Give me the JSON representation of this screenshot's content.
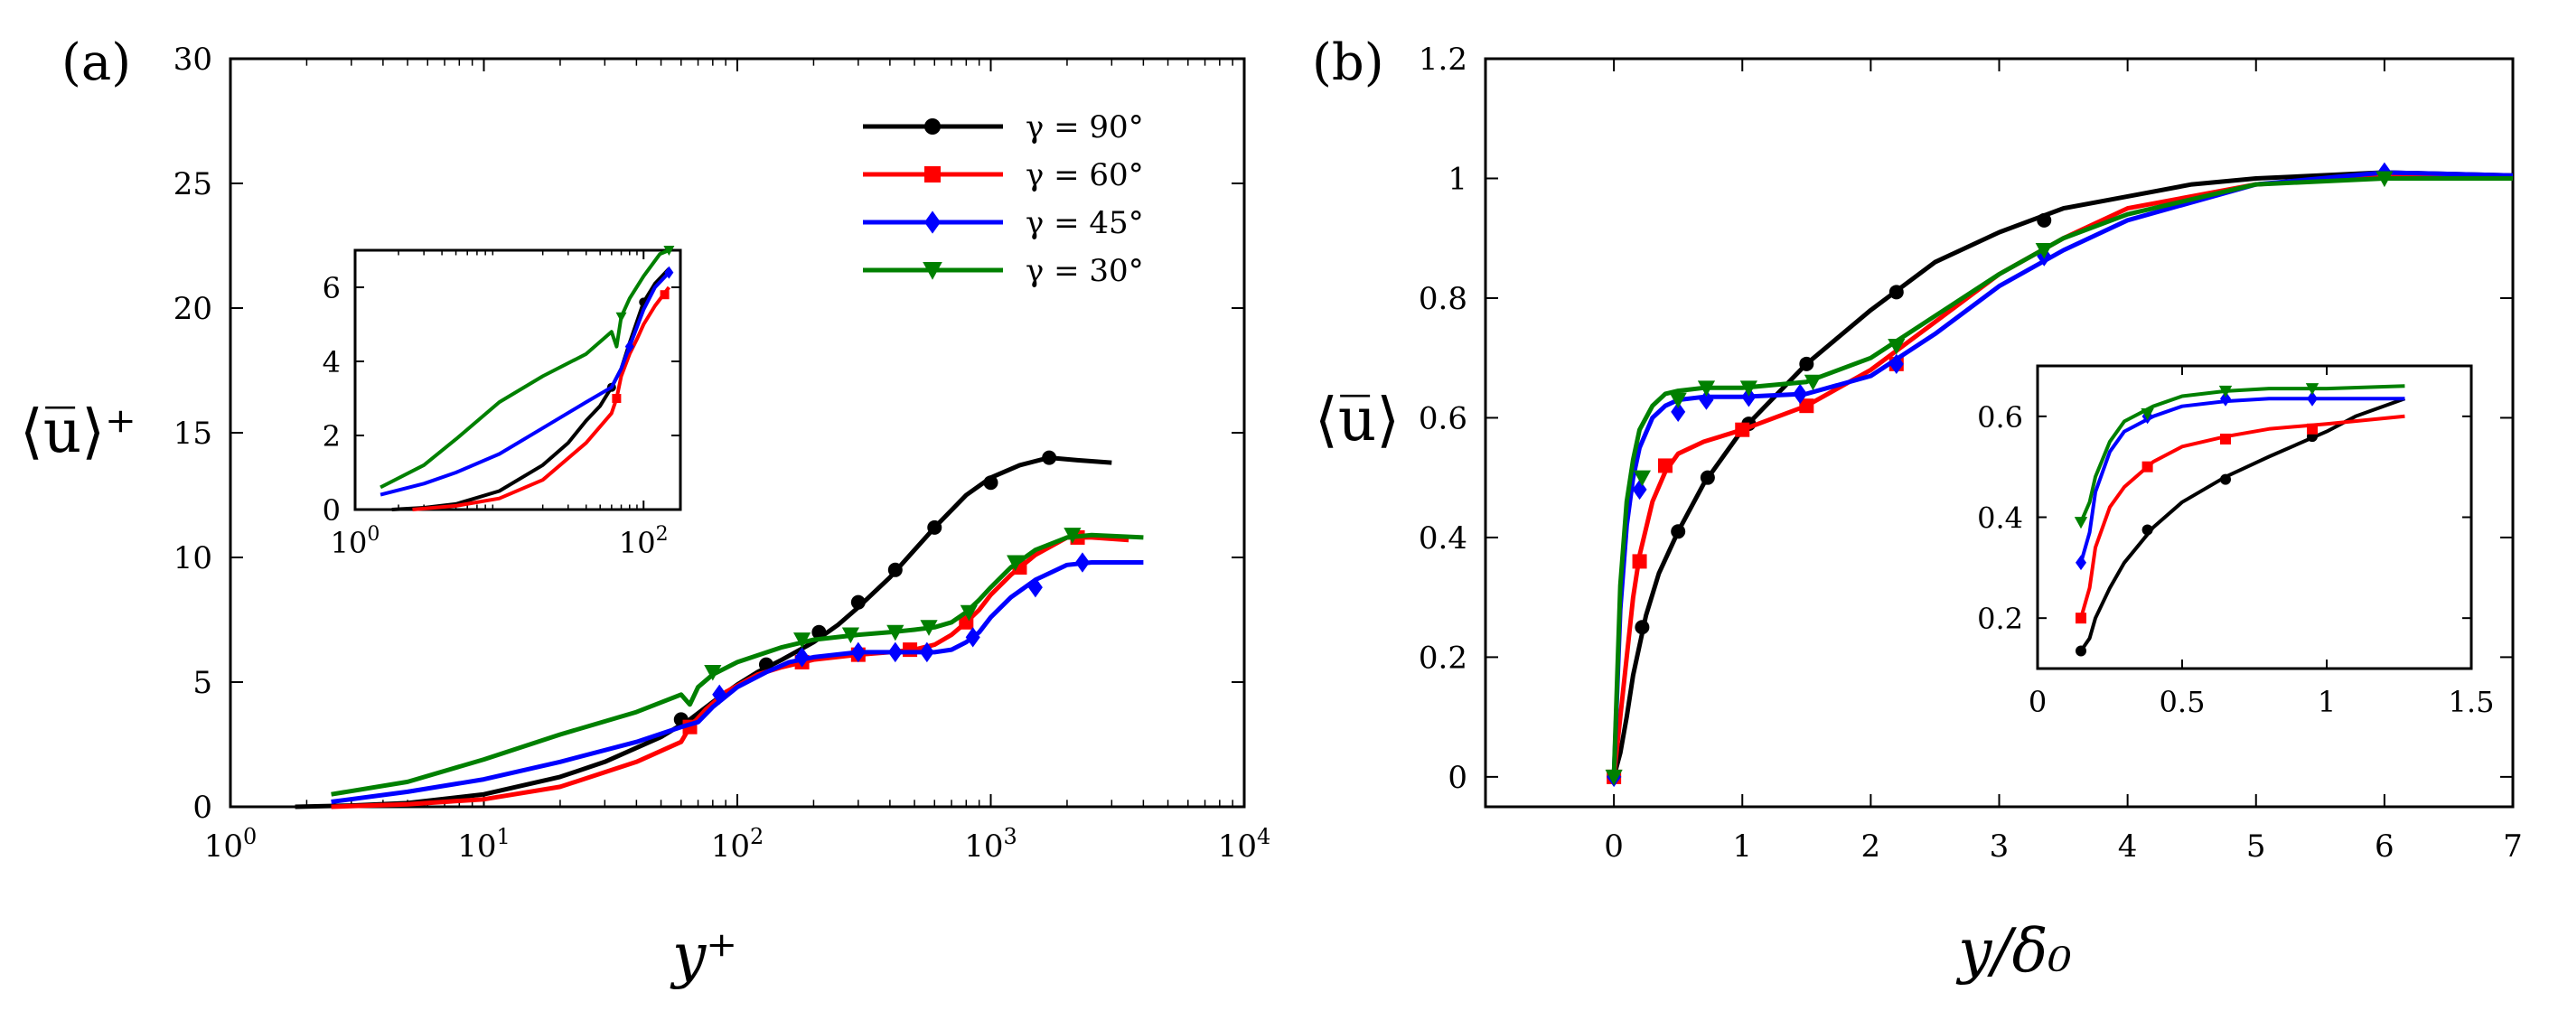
{
  "chart_data": [
    {
      "type": "line",
      "panel_label": "(a)",
      "xlabel": "y⁺",
      "ylabel": "⟨u̅⟩⁺",
      "xscale": "log",
      "xlim": [
        1,
        10000
      ],
      "ylim": [
        0,
        30
      ],
      "x_ticks": [
        {
          "v": 1,
          "base": "10",
          "exp": "0"
        },
        {
          "v": 10,
          "base": "10",
          "exp": "1"
        },
        {
          "v": 100,
          "base": "10",
          "exp": "2"
        },
        {
          "v": 1000,
          "base": "10",
          "exp": "3"
        },
        {
          "v": 10000,
          "base": "10",
          "exp": "4"
        }
      ],
      "y_ticks": [
        "0",
        "5",
        "10",
        "15",
        "20",
        "25",
        "30"
      ],
      "legend": {
        "placement": "top-right",
        "entries": [
          "γ = 90°",
          "γ = 60°",
          "γ = 45°",
          "γ = 30°"
        ]
      },
      "series": [
        {
          "name": "γ = 90°",
          "color": "#000000",
          "marker": "circle",
          "x": [
            1.8,
            3,
            5,
            10,
            20,
            30,
            50,
            65,
            80,
            100,
            120,
            150,
            200,
            250,
            300,
            400,
            500,
            600,
            700,
            800,
            1000,
            1300,
            1700,
            2200,
            3000
          ],
          "y": [
            0,
            0.05,
            0.15,
            0.5,
            1.2,
            1.8,
            2.8,
            3.5,
            4.2,
            4.9,
            5.4,
            5.9,
            6.6,
            7.3,
            8.0,
            9.2,
            10.3,
            11.2,
            11.9,
            12.5,
            13.2,
            13.7,
            14.0,
            13.9,
            13.8
          ],
          "markers_x": [
            60,
            130,
            210,
            300,
            420,
            600,
            1000,
            1700
          ],
          "markers_y": [
            3.5,
            5.7,
            7.0,
            8.2,
            9.5,
            11.2,
            13.0,
            14.0
          ]
        },
        {
          "name": "γ = 60°",
          "color": "#ff0000",
          "marker": "square",
          "x": [
            2.5,
            5,
            10,
            20,
            40,
            60,
            65,
            75,
            90,
            120,
            150,
            200,
            300,
            400,
            500,
            600,
            700,
            800,
            900,
            1000,
            1200,
            1500,
            2000,
            2500,
            3500
          ],
          "y": [
            0,
            0.1,
            0.3,
            0.8,
            1.8,
            2.6,
            3.2,
            3.9,
            4.6,
            5.3,
            5.6,
            5.9,
            6.1,
            6.2,
            6.3,
            6.5,
            6.9,
            7.4,
            7.9,
            8.5,
            9.3,
            10.1,
            10.8,
            10.8,
            10.7
          ],
          "markers_x": [
            65,
            180,
            300,
            480,
            800,
            1300,
            2200
          ],
          "markers_y": [
            3.2,
            5.8,
            6.1,
            6.3,
            7.4,
            9.6,
            10.8
          ]
        },
        {
          "name": "γ = 45°",
          "color": "#0000ff",
          "marker": "diamond",
          "x": [
            2.5,
            5,
            10,
            20,
            40,
            60,
            70,
            80,
            100,
            130,
            160,
            200,
            300,
            400,
            500,
            600,
            700,
            800,
            900,
            1000,
            1200,
            1500,
            2000,
            2500,
            4000
          ],
          "y": [
            0.2,
            0.6,
            1.1,
            1.8,
            2.6,
            3.2,
            3.4,
            4.0,
            4.8,
            5.4,
            5.8,
            6.0,
            6.2,
            6.2,
            6.2,
            6.2,
            6.3,
            6.6,
            7.0,
            7.6,
            8.4,
            9.1,
            9.7,
            9.8,
            9.8
          ],
          "markers_x": [
            85,
            180,
            300,
            420,
            560,
            850,
            1500,
            2300
          ],
          "markers_y": [
            4.5,
            6.0,
            6.2,
            6.2,
            6.2,
            6.8,
            8.8,
            9.8
          ]
        },
        {
          "name": "γ = 30°",
          "color": "#008000",
          "marker": "triangle-down",
          "x": [
            2.5,
            5,
            10,
            20,
            40,
            60,
            65,
            70,
            80,
            100,
            150,
            200,
            300,
            400,
            500,
            600,
            700,
            800,
            900,
            1000,
            1200,
            1500,
            2000,
            2500,
            4000
          ],
          "y": [
            0.5,
            1.0,
            1.9,
            2.9,
            3.8,
            4.5,
            4.1,
            4.8,
            5.3,
            5.8,
            6.4,
            6.7,
            6.9,
            7.0,
            7.1,
            7.2,
            7.4,
            7.8,
            8.3,
            8.8,
            9.6,
            10.3,
            10.8,
            10.9,
            10.8
          ],
          "markers_x": [
            80,
            180,
            280,
            420,
            570,
            820,
            1250,
            2100
          ],
          "markers_y": [
            5.4,
            6.7,
            6.9,
            7.0,
            7.2,
            7.8,
            9.8,
            10.9
          ]
        }
      ],
      "inset": {
        "xscale": "log",
        "xlim": [
          1,
          180
        ],
        "ylim": [
          0,
          7
        ],
        "x_ticks": [
          {
            "v": 1,
            "base": "10",
            "exp": "0"
          },
          {
            "v": 100,
            "base": "10",
            "exp": "2"
          }
        ],
        "y_ticks": [
          "0",
          "2",
          "4",
          "6"
        ],
        "series": [
          {
            "name": "γ = 90°",
            "color": "#000000",
            "x": [
              1.8,
              3,
              5,
              10,
              20,
              30,
              40,
              50,
              60,
              70,
              80,
              100,
              120,
              150
            ],
            "y": [
              0,
              0.05,
              0.15,
              0.5,
              1.2,
              1.8,
              2.4,
              2.8,
              3.3,
              3.8,
              4.5,
              5.6,
              6.1,
              6.5
            ],
            "markers_x": [
              60,
              100
            ],
            "markers_y": [
              3.3,
              5.6
            ]
          },
          {
            "name": "γ = 60°",
            "color": "#ff0000",
            "x": [
              2.5,
              5,
              10,
              20,
              40,
              60,
              65,
              70,
              80,
              90,
              100,
              120,
              150
            ],
            "y": [
              0,
              0.1,
              0.3,
              0.8,
              1.8,
              2.6,
              3.0,
              3.6,
              4.2,
              4.6,
              5.0,
              5.5,
              6.0
            ],
            "markers_x": [
              65,
              140
            ],
            "markers_y": [
              3.0,
              5.8
            ]
          },
          {
            "name": "γ = 45°",
            "color": "#0000ff",
            "x": [
              1.5,
              3,
              5,
              10,
              20,
              40,
              60,
              70,
              80,
              100,
              120,
              150
            ],
            "y": [
              0.4,
              0.7,
              1.0,
              1.5,
              2.2,
              2.9,
              3.3,
              3.8,
              4.4,
              5.4,
              6.0,
              6.4
            ],
            "markers_x": [
              80,
              150
            ],
            "markers_y": [
              4.4,
              6.4
            ]
          },
          {
            "name": "γ = 30°",
            "color": "#008000",
            "x": [
              1.5,
              3,
              5,
              10,
              20,
              40,
              60,
              65,
              70,
              80,
              100,
              130,
              150
            ],
            "y": [
              0.6,
              1.2,
              1.9,
              2.9,
              3.6,
              4.2,
              4.8,
              4.4,
              5.2,
              5.7,
              6.3,
              6.9,
              7.0
            ],
            "markers_x": [
              70,
              150
            ],
            "markers_y": [
              5.2,
              7.0
            ]
          }
        ]
      }
    },
    {
      "type": "line",
      "panel_label": "(b)",
      "xlabel": "y/δ₀",
      "ylabel": "⟨u̅⟩",
      "xlim": [
        -1,
        7
      ],
      "ylim": [
        -0.05,
        1.2
      ],
      "x_ticks": [
        "0",
        "1",
        "2",
        "3",
        "4",
        "5",
        "6",
        "7"
      ],
      "y_ticks": [
        "0",
        "0.2",
        "0.4",
        "0.6",
        "0.8",
        "1",
        "1.2"
      ],
      "series": [
        {
          "name": "γ = 90°",
          "color": "#000000",
          "marker": "circle",
          "x": [
            0,
            0.05,
            0.1,
            0.15,
            0.25,
            0.35,
            0.5,
            0.7,
            1.0,
            1.5,
            2.0,
            2.5,
            3.0,
            3.5,
            4.0,
            4.5,
            5.0,
            6.0,
            7.0
          ],
          "y": [
            0,
            0.04,
            0.1,
            0.17,
            0.27,
            0.34,
            0.41,
            0.49,
            0.58,
            0.69,
            0.78,
            0.86,
            0.91,
            0.95,
            0.97,
            0.99,
            1.0,
            1.01,
            1.005
          ],
          "markers_x": [
            0,
            0.22,
            0.5,
            0.73,
            1.05,
            1.5,
            2.2,
            3.35
          ],
          "markers_y": [
            0,
            0.25,
            0.41,
            0.5,
            0.59,
            0.69,
            0.81,
            0.93
          ]
        },
        {
          "name": "γ = 60°",
          "color": "#ff0000",
          "marker": "square",
          "x": [
            0,
            0.05,
            0.1,
            0.15,
            0.2,
            0.3,
            0.4,
            0.5,
            0.7,
            1.0,
            1.5,
            2.0,
            2.5,
            3.0,
            3.5,
            4.0,
            5.0,
            6.0,
            7.0
          ],
          "y": [
            0,
            0.1,
            0.2,
            0.3,
            0.37,
            0.46,
            0.51,
            0.54,
            0.56,
            0.58,
            0.62,
            0.68,
            0.76,
            0.84,
            0.9,
            0.95,
            0.99,
            1.005,
            1.0
          ],
          "markers_x": [
            0,
            0.2,
            0.4,
            1.0,
            1.5,
            2.2
          ],
          "markers_y": [
            0,
            0.36,
            0.52,
            0.58,
            0.62,
            0.69
          ]
        },
        {
          "name": "γ = 45°",
          "color": "#0000ff",
          "marker": "diamond",
          "x": [
            0,
            0.05,
            0.1,
            0.15,
            0.2,
            0.3,
            0.4,
            0.5,
            0.7,
            1.0,
            1.5,
            2.0,
            2.5,
            3.0,
            3.5,
            4.0,
            5.0,
            6.0,
            7.0
          ],
          "y": [
            0,
            0.28,
            0.42,
            0.5,
            0.55,
            0.6,
            0.62,
            0.63,
            0.635,
            0.635,
            0.64,
            0.67,
            0.74,
            0.82,
            0.88,
            0.93,
            0.99,
            1.01,
            1.005
          ],
          "markers_x": [
            0,
            0.2,
            0.5,
            0.72,
            1.05,
            1.45,
            2.2,
            3.35,
            6.0
          ],
          "markers_y": [
            0,
            0.48,
            0.61,
            0.63,
            0.635,
            0.64,
            0.69,
            0.87,
            1.01
          ]
        },
        {
          "name": "γ = 30°",
          "color": "#008000",
          "marker": "triangle-down",
          "x": [
            0,
            0.05,
            0.1,
            0.15,
            0.2,
            0.3,
            0.4,
            0.5,
            0.7,
            1.0,
            1.5,
            2.0,
            2.5,
            3.0,
            3.5,
            4.0,
            5.0,
            6.0,
            7.0
          ],
          "y": [
            0,
            0.32,
            0.46,
            0.53,
            0.58,
            0.62,
            0.64,
            0.645,
            0.65,
            0.65,
            0.66,
            0.7,
            0.77,
            0.84,
            0.9,
            0.94,
            0.99,
            1.0,
            1.0
          ],
          "markers_x": [
            0,
            0.22,
            0.5,
            0.72,
            1.05,
            1.55,
            2.2,
            3.35,
            6.0
          ],
          "markers_y": [
            0,
            0.5,
            0.63,
            0.65,
            0.65,
            0.66,
            0.72,
            0.88,
            1.0
          ]
        }
      ],
      "inset": {
        "xlim": [
          0,
          1.5
        ],
        "ylim": [
          0.1,
          0.7
        ],
        "x_ticks": [
          "0",
          "0.5",
          "1",
          "1.5"
        ],
        "y_ticks": [
          "0.2",
          "0.4",
          "0.6"
        ],
        "series": [
          {
            "name": "γ = 90°",
            "color": "#000000",
            "x": [
              0.15,
              0.18,
              0.2,
              0.25,
              0.3,
              0.4,
              0.5,
              0.65,
              0.8,
              1.0,
              1.1,
              1.27
            ],
            "y": [
              0.135,
              0.16,
              0.2,
              0.26,
              0.31,
              0.38,
              0.43,
              0.48,
              0.52,
              0.57,
              0.6,
              0.635
            ],
            "markers_x": [
              0.15,
              0.38,
              0.65,
              0.95
            ],
            "markers_y": [
              0.135,
              0.375,
              0.475,
              0.56
            ]
          },
          {
            "name": "γ = 60°",
            "color": "#ff0000",
            "x": [
              0.15,
              0.18,
              0.2,
              0.25,
              0.3,
              0.4,
              0.5,
              0.65,
              0.8,
              1.0,
              1.27
            ],
            "y": [
              0.2,
              0.26,
              0.34,
              0.42,
              0.46,
              0.51,
              0.54,
              0.56,
              0.575,
              0.585,
              0.6
            ],
            "markers_x": [
              0.15,
              0.38,
              0.65,
              0.95
            ],
            "markers_y": [
              0.2,
              0.5,
              0.555,
              0.575
            ]
          },
          {
            "name": "γ = 45°",
            "color": "#0000ff",
            "x": [
              0.15,
              0.18,
              0.2,
              0.25,
              0.3,
              0.4,
              0.5,
              0.65,
              0.8,
              1.0,
              1.27
            ],
            "y": [
              0.31,
              0.37,
              0.45,
              0.53,
              0.57,
              0.6,
              0.62,
              0.63,
              0.635,
              0.635,
              0.635
            ],
            "markers_x": [
              0.15,
              0.38,
              0.65,
              0.95
            ],
            "markers_y": [
              0.31,
              0.6,
              0.635,
              0.635
            ]
          },
          {
            "name": "γ = 30°",
            "color": "#008000",
            "x": [
              0.15,
              0.18,
              0.2,
              0.25,
              0.3,
              0.4,
              0.5,
              0.65,
              0.8,
              1.0,
              1.27
            ],
            "y": [
              0.39,
              0.43,
              0.48,
              0.55,
              0.59,
              0.62,
              0.64,
              0.65,
              0.655,
              0.655,
              0.66
            ],
            "markers_x": [
              0.15,
              0.38,
              0.65,
              0.95
            ],
            "markers_y": [
              0.39,
              0.605,
              0.65,
              0.655
            ]
          }
        ]
      }
    }
  ]
}
